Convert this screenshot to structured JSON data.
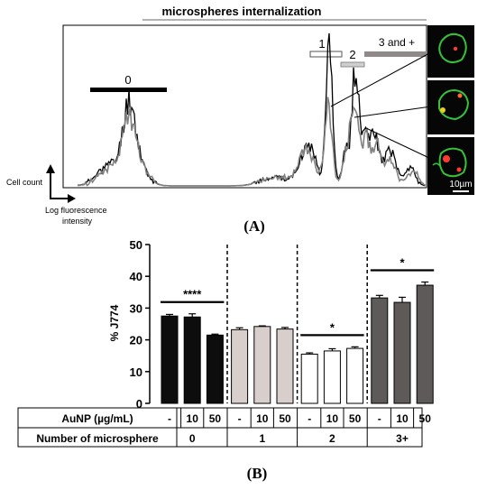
{
  "panel_a": {
    "header": "microspheres internalization",
    "gate_labels": [
      "0",
      "1",
      "2",
      "3 and +"
    ],
    "y_axis_label": "Cell count",
    "x_axis_label_line1": "Log fluorescence",
    "x_axis_label_line2": "intensity",
    "scale_bar": "10µm",
    "caption": "(A)"
  },
  "panel_b": {
    "caption": "(B)",
    "row1_label": "AuNP (µg/mL)",
    "row2_label": "Number of microsphere",
    "row1_values": [
      "-",
      "10",
      "50",
      "-",
      "10",
      "50",
      "-",
      "10",
      "50",
      "-",
      "10",
      "50"
    ],
    "row2_values": [
      "0",
      "1",
      "2",
      "3+"
    ],
    "significance": [
      "****",
      "*",
      "*"
    ]
  },
  "chart_data": {
    "type": "bar",
    "ylabel": "% J774",
    "ylim": [
      0,
      50
    ],
    "yticks": [
      "0",
      "10",
      "20",
      "30",
      "40",
      "50"
    ],
    "groups": [
      "0",
      "1",
      "2",
      "3+"
    ],
    "categories": [
      "-",
      "10",
      "50",
      "-",
      "10",
      "50",
      "-",
      "10",
      "50",
      "-",
      "10",
      "50"
    ],
    "values": [
      27.5,
      27.2,
      21.5,
      23.2,
      24.2,
      23.4,
      15.5,
      16.5,
      17.3,
      33.2,
      31.8,
      37.2
    ],
    "errors": [
      0.5,
      1.0,
      0.3,
      0.6,
      0.2,
      0.5,
      0.4,
      0.7,
      0.5,
      0.8,
      1.6,
      1.0
    ],
    "colors": [
      "#0d0d0d",
      "#0d0d0d",
      "#0d0d0d",
      "#d8cfcd",
      "#d8cfcd",
      "#d8cfcd",
      "#ffffff",
      "#ffffff",
      "#ffffff",
      "#5e5a59",
      "#5e5a59",
      "#5e5a59"
    ]
  }
}
